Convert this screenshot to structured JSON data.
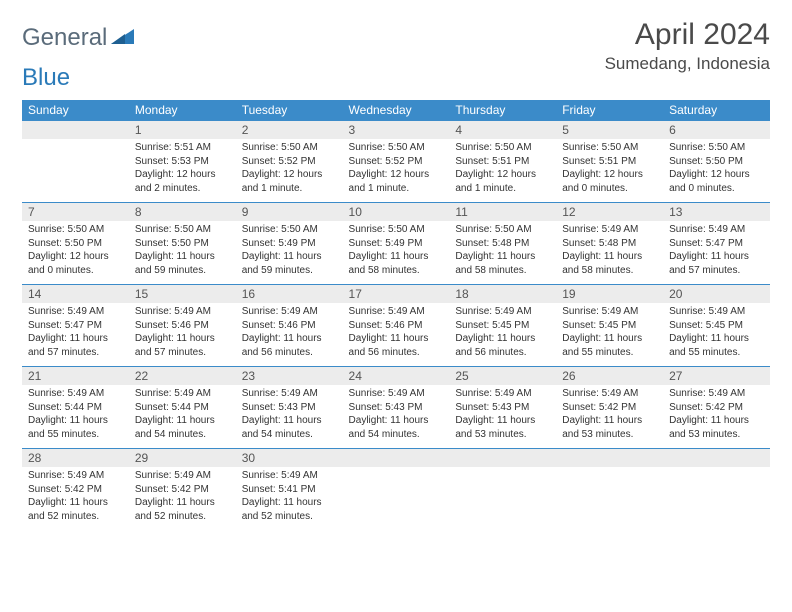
{
  "brand": {
    "part1": "General",
    "part2": "Blue"
  },
  "title": "April 2024",
  "location": "Sumedang, Indonesia",
  "colors": {
    "header_bg": "#3b8bc9",
    "header_text": "#ffffff",
    "daynum_bg": "#ececec",
    "row_border": "#3b8bc9",
    "text": "#333333",
    "logo_gray": "#5a6b7a",
    "logo_blue": "#2a7ab8"
  },
  "weekdays": [
    "Sunday",
    "Monday",
    "Tuesday",
    "Wednesday",
    "Thursday",
    "Friday",
    "Saturday"
  ],
  "first_weekday_index": 1,
  "days": [
    {
      "n": 1,
      "sunrise": "5:51 AM",
      "sunset": "5:53 PM",
      "daylight": "12 hours and 2 minutes."
    },
    {
      "n": 2,
      "sunrise": "5:50 AM",
      "sunset": "5:52 PM",
      "daylight": "12 hours and 1 minute."
    },
    {
      "n": 3,
      "sunrise": "5:50 AM",
      "sunset": "5:52 PM",
      "daylight": "12 hours and 1 minute."
    },
    {
      "n": 4,
      "sunrise": "5:50 AM",
      "sunset": "5:51 PM",
      "daylight": "12 hours and 1 minute."
    },
    {
      "n": 5,
      "sunrise": "5:50 AM",
      "sunset": "5:51 PM",
      "daylight": "12 hours and 0 minutes."
    },
    {
      "n": 6,
      "sunrise": "5:50 AM",
      "sunset": "5:50 PM",
      "daylight": "12 hours and 0 minutes."
    },
    {
      "n": 7,
      "sunrise": "5:50 AM",
      "sunset": "5:50 PM",
      "daylight": "12 hours and 0 minutes."
    },
    {
      "n": 8,
      "sunrise": "5:50 AM",
      "sunset": "5:50 PM",
      "daylight": "11 hours and 59 minutes."
    },
    {
      "n": 9,
      "sunrise": "5:50 AM",
      "sunset": "5:49 PM",
      "daylight": "11 hours and 59 minutes."
    },
    {
      "n": 10,
      "sunrise": "5:50 AM",
      "sunset": "5:49 PM",
      "daylight": "11 hours and 58 minutes."
    },
    {
      "n": 11,
      "sunrise": "5:50 AM",
      "sunset": "5:48 PM",
      "daylight": "11 hours and 58 minutes."
    },
    {
      "n": 12,
      "sunrise": "5:49 AM",
      "sunset": "5:48 PM",
      "daylight": "11 hours and 58 minutes."
    },
    {
      "n": 13,
      "sunrise": "5:49 AM",
      "sunset": "5:47 PM",
      "daylight": "11 hours and 57 minutes."
    },
    {
      "n": 14,
      "sunrise": "5:49 AM",
      "sunset": "5:47 PM",
      "daylight": "11 hours and 57 minutes."
    },
    {
      "n": 15,
      "sunrise": "5:49 AM",
      "sunset": "5:46 PM",
      "daylight": "11 hours and 57 minutes."
    },
    {
      "n": 16,
      "sunrise": "5:49 AM",
      "sunset": "5:46 PM",
      "daylight": "11 hours and 56 minutes."
    },
    {
      "n": 17,
      "sunrise": "5:49 AM",
      "sunset": "5:46 PM",
      "daylight": "11 hours and 56 minutes."
    },
    {
      "n": 18,
      "sunrise": "5:49 AM",
      "sunset": "5:45 PM",
      "daylight": "11 hours and 56 minutes."
    },
    {
      "n": 19,
      "sunrise": "5:49 AM",
      "sunset": "5:45 PM",
      "daylight": "11 hours and 55 minutes."
    },
    {
      "n": 20,
      "sunrise": "5:49 AM",
      "sunset": "5:45 PM",
      "daylight": "11 hours and 55 minutes."
    },
    {
      "n": 21,
      "sunrise": "5:49 AM",
      "sunset": "5:44 PM",
      "daylight": "11 hours and 55 minutes."
    },
    {
      "n": 22,
      "sunrise": "5:49 AM",
      "sunset": "5:44 PM",
      "daylight": "11 hours and 54 minutes."
    },
    {
      "n": 23,
      "sunrise": "5:49 AM",
      "sunset": "5:43 PM",
      "daylight": "11 hours and 54 minutes."
    },
    {
      "n": 24,
      "sunrise": "5:49 AM",
      "sunset": "5:43 PM",
      "daylight": "11 hours and 54 minutes."
    },
    {
      "n": 25,
      "sunrise": "5:49 AM",
      "sunset": "5:43 PM",
      "daylight": "11 hours and 53 minutes."
    },
    {
      "n": 26,
      "sunrise": "5:49 AM",
      "sunset": "5:42 PM",
      "daylight": "11 hours and 53 minutes."
    },
    {
      "n": 27,
      "sunrise": "5:49 AM",
      "sunset": "5:42 PM",
      "daylight": "11 hours and 53 minutes."
    },
    {
      "n": 28,
      "sunrise": "5:49 AM",
      "sunset": "5:42 PM",
      "daylight": "11 hours and 52 minutes."
    },
    {
      "n": 29,
      "sunrise": "5:49 AM",
      "sunset": "5:42 PM",
      "daylight": "11 hours and 52 minutes."
    },
    {
      "n": 30,
      "sunrise": "5:49 AM",
      "sunset": "5:41 PM",
      "daylight": "11 hours and 52 minutes."
    }
  ],
  "labels": {
    "sunrise": "Sunrise:",
    "sunset": "Sunset:",
    "daylight": "Daylight:"
  }
}
